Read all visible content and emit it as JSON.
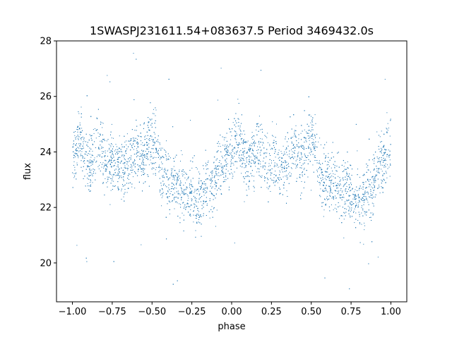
{
  "chart_data": {
    "type": "scatter",
    "title": "1SWASPJ231611.54+083637.5 Period 3469432.0s",
    "xlabel": "phase",
    "ylabel": "flux",
    "xlim": [
      -1.1,
      1.1
    ],
    "ylim": [
      18.6,
      28.0
    ],
    "x_ticks": [
      -1.0,
      -0.75,
      -0.5,
      -0.25,
      0.0,
      0.25,
      0.5,
      0.75,
      1.0
    ],
    "x_tick_labels": [
      "−1.00",
      "−0.75",
      "−0.50",
      "−0.25",
      "0.00",
      "0.25",
      "0.50",
      "0.75",
      "1.00"
    ],
    "y_ticks": [
      20,
      22,
      24,
      26,
      28
    ],
    "y_tick_labels": [
      "20",
      "22",
      "24",
      "26",
      "28"
    ],
    "grid": false,
    "marker_color": "#1f77b4",
    "series": [
      {
        "phase": [
          -1.0,
          -0.96,
          -0.9,
          -0.83,
          -0.78,
          -0.74,
          -0.7,
          -0.64,
          -0.6,
          -0.56,
          -0.52,
          -0.48,
          -0.44,
          -0.39,
          -0.34,
          -0.3,
          -0.26,
          -0.23,
          -0.2,
          -0.16,
          -0.12,
          -0.08,
          -0.04,
          -0.01,
          0.0,
          0.04,
          0.1,
          0.17,
          0.22,
          0.26,
          0.3,
          0.36,
          0.4,
          0.44,
          0.48,
          0.52,
          0.56,
          0.61,
          0.66,
          0.7,
          0.74,
          0.77,
          0.8,
          0.84,
          0.88,
          0.92,
          0.96,
          0.99
        ],
        "flux_mean": [
          23.8,
          24.5,
          23.5,
          24.2,
          23.5,
          23.6,
          23.4,
          23.6,
          24.1,
          23.7,
          24.3,
          24.3,
          23.2,
          22.9,
          22.8,
          22.6,
          22.6,
          22.3,
          22.3,
          22.6,
          22.8,
          23.5,
          23.7,
          24.0,
          23.8,
          24.5,
          23.5,
          24.2,
          23.5,
          23.6,
          23.4,
          23.6,
          24.1,
          23.7,
          24.3,
          24.3,
          23.2,
          22.9,
          22.8,
          22.6,
          22.6,
          22.3,
          22.3,
          22.6,
          22.8,
          23.5,
          23.7,
          24.0
        ]
      }
    ]
  }
}
